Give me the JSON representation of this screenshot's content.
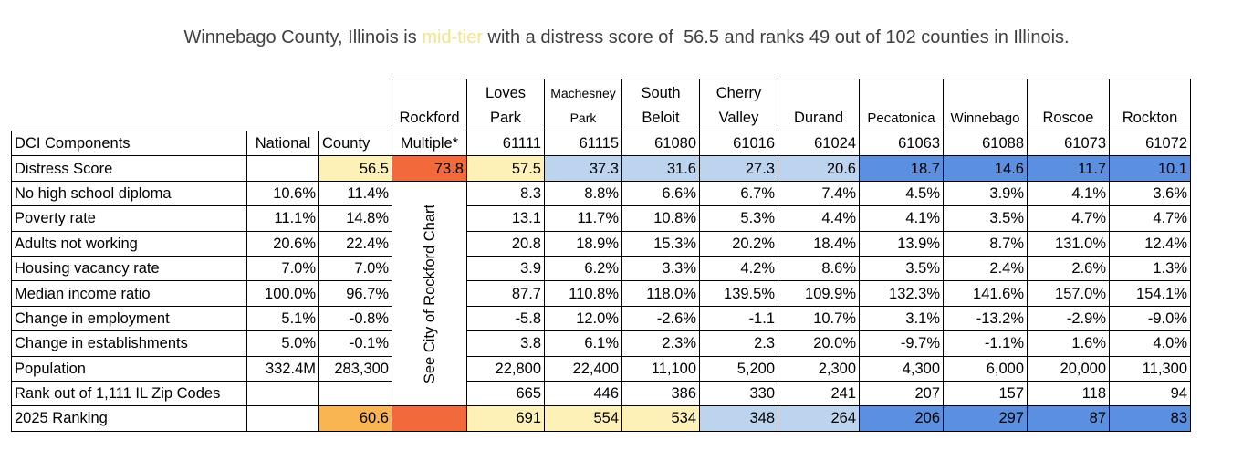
{
  "headline": {
    "prefix": "Winnebago County, Illinois is ",
    "tier": "mid-tier",
    "suffix": " with a distress score of  56.5 and ranks 49 out of 102 counties in Illinois."
  },
  "header": {
    "labels": [
      "",
      "",
      "",
      "Rockford",
      "Loves\nPark",
      "Machesney\nPark",
      "South\nBeloit",
      "Cherry\nValley",
      "Durand",
      "Pecatonica",
      "Winnebago",
      "Roscoe",
      "Rockton"
    ]
  },
  "table": {
    "columns": [
      "DCI Components",
      "National",
      "County",
      "Multiple*",
      "61111",
      "61115",
      "61080",
      "61016",
      "61024",
      "61063",
      "61088",
      "61073",
      "61072"
    ],
    "rockford_note": "See City of Rockford Chart",
    "rows": [
      {
        "label": "Distress Score",
        "national": "",
        "county": "56.5",
        "rockford": "73.8",
        "zips": [
          "57.5",
          "37.3",
          "31.6",
          "27.3",
          "20.6",
          "18.7",
          "14.6",
          "11.7",
          "10.1"
        ]
      },
      {
        "label": "No high school diploma",
        "national": "10.6%",
        "county": "11.4%",
        "zips": [
          "8.3",
          "8.8%",
          "6.6%",
          "6.7%",
          "7.4%",
          "4.5%",
          "3.9%",
          "4.1%",
          "3.6%"
        ]
      },
      {
        "label": "Poverty rate",
        "national": "11.1%",
        "county": "14.8%",
        "zips": [
          "13.1",
          "11.7%",
          "10.8%",
          "5.3%",
          "4.4%",
          "4.1%",
          "3.5%",
          "4.7%",
          "4.7%"
        ]
      },
      {
        "label": "Adults not working",
        "national": "20.6%",
        "county": "22.4%",
        "zips": [
          "20.8",
          "18.9%",
          "15.3%",
          "20.2%",
          "18.4%",
          "13.9%",
          "8.7%",
          "131.0%",
          "12.4%"
        ]
      },
      {
        "label": "Housing vacancy rate",
        "national": "7.0%",
        "county": "7.0%",
        "zips": [
          "3.9",
          "6.2%",
          "3.3%",
          "4.2%",
          "8.6%",
          "3.5%",
          "2.4%",
          "2.6%",
          "1.3%"
        ]
      },
      {
        "label": "Median income ratio",
        "national": "100.0%",
        "county": "96.7%",
        "zips": [
          "87.7",
          "110.8%",
          "118.0%",
          "139.5%",
          "109.9%",
          "132.3%",
          "141.6%",
          "157.0%",
          "154.1%"
        ]
      },
      {
        "label": "Change in employment",
        "national": "5.1%",
        "county": "-0.8%",
        "zips": [
          "-5.8",
          "12.0%",
          "-2.6%",
          "-1.1",
          "10.7%",
          "3.1%",
          "-13.2%",
          "-2.9%",
          "-9.0%"
        ]
      },
      {
        "label": "Change in establishments",
        "national": "5.0%",
        "county": "-0.1%",
        "zips": [
          "3.8",
          "6.1%",
          "2.3%",
          "2.3",
          "20.0%",
          "-9.7%",
          "-1.1%",
          "1.6%",
          "4.0%"
        ]
      },
      {
        "label": "Population",
        "national": "332.4M",
        "county": "283,300",
        "zips": [
          "22,800",
          "22,400",
          "11,100",
          "5,200",
          "2,300",
          "4,300",
          "6,000",
          "20,000",
          "11,300"
        ]
      },
      {
        "label": "Rank out of 1,111 IL Zip Codes",
        "national": "",
        "county": "",
        "zips": [
          "665",
          "446",
          "386",
          "330",
          "241",
          "207",
          "157",
          "118",
          "94"
        ]
      },
      {
        "label": "2025 Ranking",
        "national": "",
        "county": "60.6",
        "rockford": "",
        "zips": [
          "691",
          "554",
          "534",
          "348",
          "264",
          "206",
          "297",
          "87",
          "83"
        ]
      }
    ]
  },
  "colors": {
    "red": "#f26a3b",
    "orange": "#f9b552",
    "lightyellow": "#fdf1b8",
    "lightblue": "#bdd4ef",
    "blue": "#5b8fe0",
    "highlight": "#f5e28a"
  }
}
